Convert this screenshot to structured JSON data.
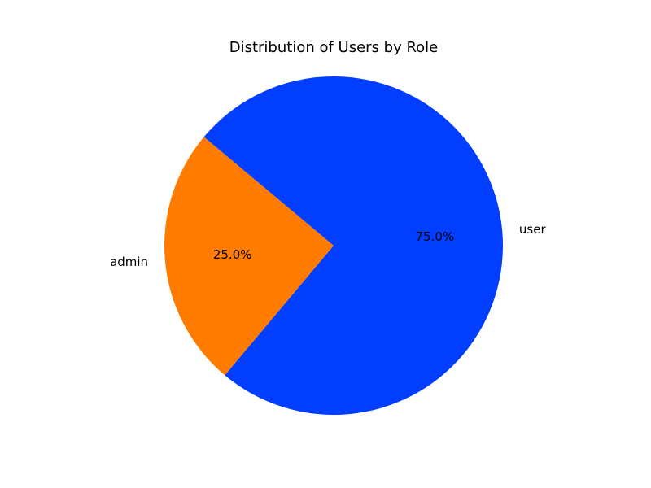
{
  "chart_data": {
    "type": "pie",
    "title": "Distribution of Users by Role",
    "slices": [
      {
        "label": "admin",
        "value": 25.0,
        "percent_label": "25.0%",
        "color": "#ff7c00"
      },
      {
        "label": "user",
        "value": 75.0,
        "percent_label": "75.0%",
        "color": "#023eff"
      }
    ],
    "start_angle_deg": 140,
    "direction": "counterclockwise",
    "legend": "none"
  }
}
